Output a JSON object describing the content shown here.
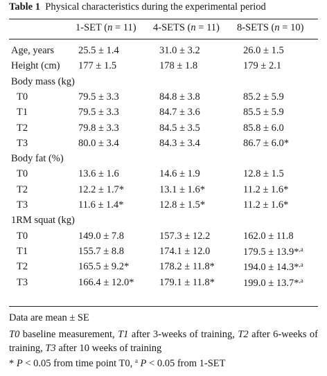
{
  "caption": {
    "label": "Table 1",
    "text": "Physical characteristics during the experimental period"
  },
  "headers": [
    "1-SET (n = 11)",
    "4-SETS (n = 11)",
    "8-SETS (n = 10)"
  ],
  "header_parts": [
    {
      "name": "1-SET",
      "n": "11"
    },
    {
      "name": "4-SETS",
      "n": "11"
    },
    {
      "name": "8-SETS",
      "n": "10"
    }
  ],
  "rows": [
    {
      "label": "Age, years",
      "indent": false,
      "values": [
        "25.5 ± 1.4",
        "31.0 ± 3.2",
        "26.0 ± 1.5"
      ]
    },
    {
      "label": "Height (cm)",
      "indent": false,
      "values": [
        "177 ± 1.5",
        "178 ± 1.8",
        "179 ± 2.1"
      ]
    },
    {
      "label": "Body mass (kg)",
      "indent": false,
      "values": [
        "",
        "",
        ""
      ]
    },
    {
      "label": "T0",
      "indent": true,
      "values": [
        "79.5 ± 3.3",
        "84.8 ± 3.8",
        "85.2 ± 5.9"
      ]
    },
    {
      "label": "T1",
      "indent": true,
      "values": [
        "79.5 ± 3.3",
        "84.7 ± 3.6",
        "85.5 ± 5.9"
      ]
    },
    {
      "label": "T2",
      "indent": true,
      "values": [
        "79.8 ± 3.3",
        "84.5 ± 3.5",
        "85.8 ± 6.0"
      ]
    },
    {
      "label": "T3",
      "indent": true,
      "values": [
        "80.0 ± 3.4",
        "84.3 ± 3.4",
        "86.7 ± 6.0*"
      ]
    },
    {
      "label": "Body fat (%)",
      "indent": false,
      "values": [
        "",
        "",
        ""
      ]
    },
    {
      "label": "T0",
      "indent": true,
      "values": [
        "13.6 ± 1.6",
        "14.6 ± 1.9",
        "12.8 ± 1.5"
      ]
    },
    {
      "label": "T2",
      "indent": true,
      "values": [
        "12.2 ± 1.7*",
        "13.1 ± 1.6*",
        "11.2 ± 1.6*"
      ]
    },
    {
      "label": "T3",
      "indent": true,
      "values": [
        "11.6 ± 1.4*",
        "12.8 ± 1.5*",
        "11.2 ± 1.6*"
      ]
    },
    {
      "label": "1RM squat (kg)",
      "indent": false,
      "values": [
        "",
        "",
        ""
      ]
    },
    {
      "label": "T0",
      "indent": true,
      "values": [
        "149.0 ± 7.8",
        "157.3 ± 12.2",
        "162.0 ± 11.8"
      ]
    },
    {
      "label": "T1",
      "indent": true,
      "values": [
        "155.7 ± 8.8",
        "174.1 ± 12.0",
        "179.5 ± 13.9*,a"
      ]
    },
    {
      "label": "T2",
      "indent": true,
      "values": [
        "165.5 ± 9.2*",
        "178.2 ± 11.8*",
        "194.0 ± 14.3*,a"
      ]
    },
    {
      "label": "T3",
      "indent": true,
      "values": [
        "166.4 ± 12.0*",
        "179.1 ± 11.8*",
        "199.0 ± 13.7*,a"
      ]
    }
  ],
  "footnotes": {
    "data_note": "Data are mean ± SE",
    "abbreviations": [
      {
        "term": "T0",
        "desc": " baseline measurement, "
      },
      {
        "term": "T1",
        "desc": " after 3-weeks of training, "
      },
      {
        "term": "T2",
        "desc": " after 6-weeks of training, "
      },
      {
        "term": "T3",
        "desc": " after 10 weeks of training"
      }
    ],
    "significance": {
      "star": "*",
      "p1": "P",
      "t1": " < 0.05 from time point T0, ",
      "sup": "a",
      "p2": "P",
      "t2": " < 0.05 from 1-SET"
    }
  }
}
